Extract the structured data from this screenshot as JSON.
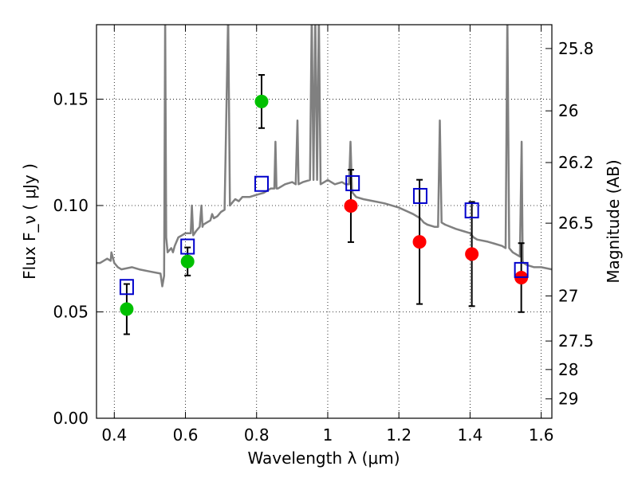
{
  "chart_data": {
    "type": "scatter",
    "xlabel": "Wavelength  λ (μm)",
    "ylabel": "Flux  F_ν  ( μJy )",
    "ylabel_right": "Magnitude (AB)",
    "xlim": [
      0.35,
      1.63
    ],
    "ylim": [
      0.0,
      0.185
    ],
    "grid": true,
    "x_ticks": [
      0.4,
      0.6,
      0.8,
      1.0,
      1.2,
      1.4,
      1.6
    ],
    "x_tick_labels": [
      "0.4",
      "0.6",
      "0.8",
      "1",
      "1.2",
      "1.4",
      "1.6"
    ],
    "y_ticks": [
      0.0,
      0.05,
      0.1,
      0.15
    ],
    "y_tick_labels": [
      "0.00",
      "0.05",
      "0.10",
      "0.15"
    ],
    "right_ticks": [
      {
        "flux": 0.1738,
        "label": "25.8"
      },
      {
        "flux": 0.1445,
        "label": "26"
      },
      {
        "flux": 0.1202,
        "label": "26.2"
      },
      {
        "flux": 0.0917,
        "label": "26.5"
      },
      {
        "flux": 0.0575,
        "label": "27"
      },
      {
        "flux": 0.0363,
        "label": "27.5"
      },
      {
        "flux": 0.0229,
        "label": "28"
      },
      {
        "flux": 0.0091,
        "label": "29"
      }
    ],
    "series": [
      {
        "color": "#00c000",
        "marker": "circle",
        "x": [
          0.435,
          0.606,
          0.814
        ],
        "y": [
          0.0513,
          0.0737,
          0.1489
        ],
        "yerr": [
          0.0118,
          0.0066,
          0.0125
        ]
      },
      {
        "color": "#ff0000",
        "marker": "circle",
        "x": [
          1.065,
          1.258,
          1.405,
          1.544
        ],
        "y": [
          0.0998,
          0.0829,
          0.0772,
          0.0661
        ],
        "yerr": [
          0.017,
          0.0292,
          0.0245,
          0.0162
        ]
      },
      {
        "color": "#0000cc",
        "marker": "open-square",
        "x": [
          0.435,
          0.606,
          0.814,
          1.07,
          1.26,
          1.405,
          1.544
        ],
        "y": [
          0.0617,
          0.0807,
          0.1102,
          0.1105,
          0.1045,
          0.0977,
          0.0697
        ]
      },
      {
        "color": "#808080",
        "marker": "line",
        "x": [
          0.35,
          0.36,
          0.38,
          0.39,
          0.392,
          0.4,
          0.41,
          0.42,
          0.45,
          0.47,
          0.5,
          0.53,
          0.535,
          0.54,
          0.543,
          0.546,
          0.55,
          0.56,
          0.565,
          0.57,
          0.58,
          0.59,
          0.6,
          0.615,
          0.618,
          0.622,
          0.63,
          0.64,
          0.645,
          0.648,
          0.65,
          0.66,
          0.67,
          0.675,
          0.68,
          0.69,
          0.7,
          0.71,
          0.72,
          0.725,
          0.73,
          0.735,
          0.74,
          0.75,
          0.76,
          0.78,
          0.8,
          0.82,
          0.83,
          0.84,
          0.85,
          0.853,
          0.856,
          0.86,
          0.87,
          0.88,
          0.9,
          0.91,
          0.915,
          0.918,
          0.93,
          0.95,
          0.955,
          0.96,
          0.965,
          0.97,
          0.975,
          0.98,
          1.0,
          1.02,
          1.04,
          1.05,
          1.06,
          1.064,
          1.068,
          1.07,
          1.08,
          1.1,
          1.13,
          1.16,
          1.2,
          1.24,
          1.26,
          1.27,
          1.28,
          1.3,
          1.31,
          1.315,
          1.32,
          1.33,
          1.36,
          1.38,
          1.4,
          1.41,
          1.42,
          1.45,
          1.47,
          1.49,
          1.5,
          1.505,
          1.51,
          1.52,
          1.54,
          1.545,
          1.548,
          1.55,
          1.56,
          1.58,
          1.6,
          1.63
        ],
        "y": [
          0.073,
          0.073,
          0.075,
          0.074,
          0.078,
          0.073,
          0.071,
          0.07,
          0.071,
          0.07,
          0.069,
          0.068,
          0.062,
          0.067,
          0.19,
          0.085,
          0.078,
          0.08,
          0.078,
          0.081,
          0.085,
          0.086,
          0.087,
          0.087,
          0.1,
          0.086,
          0.088,
          0.09,
          0.1,
          0.09,
          0.091,
          0.092,
          0.093,
          0.096,
          0.094,
          0.095,
          0.097,
          0.098,
          0.19,
          0.1,
          0.101,
          0.102,
          0.103,
          0.102,
          0.104,
          0.104,
          0.105,
          0.106,
          0.107,
          0.108,
          0.108,
          0.13,
          0.108,
          0.108,
          0.109,
          0.11,
          0.111,
          0.11,
          0.14,
          0.11,
          0.111,
          0.112,
          0.19,
          0.112,
          0.19,
          0.112,
          0.19,
          0.11,
          0.112,
          0.11,
          0.111,
          0.11,
          0.11,
          0.13,
          0.108,
          0.106,
          0.104,
          0.103,
          0.102,
          0.101,
          0.099,
          0.096,
          0.094,
          0.092,
          0.091,
          0.09,
          0.09,
          0.14,
          0.092,
          0.091,
          0.089,
          0.088,
          0.087,
          0.085,
          0.084,
          0.083,
          0.082,
          0.081,
          0.08,
          0.19,
          0.08,
          0.078,
          0.076,
          0.13,
          0.074,
          0.073,
          0.072,
          0.071,
          0.071,
          0.07
        ]
      }
    ]
  }
}
